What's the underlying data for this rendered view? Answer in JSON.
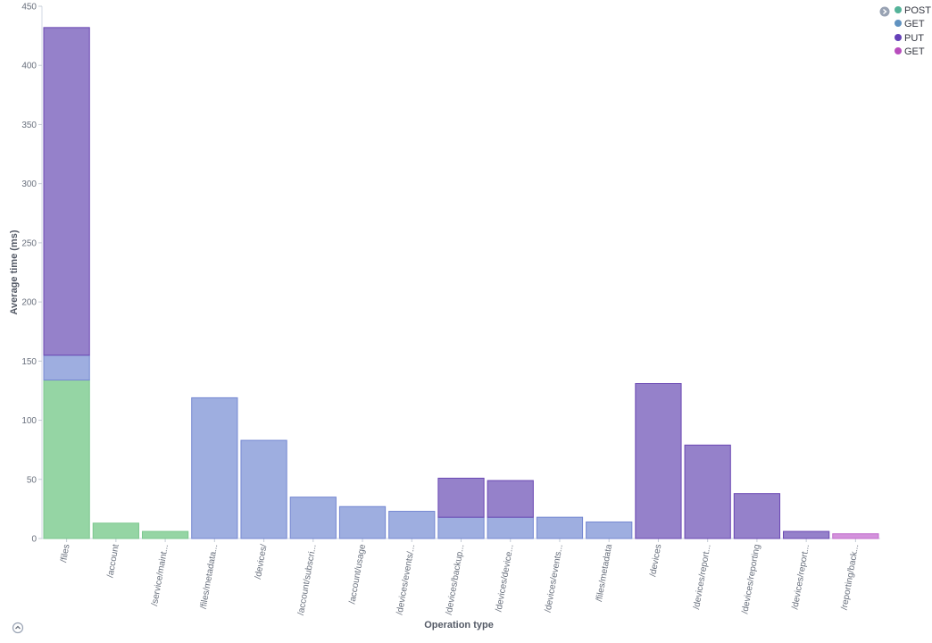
{
  "chart_data": {
    "type": "bar",
    "stacked": true,
    "xlabel": "Operation type",
    "ylabel": "Average time (ms)",
    "ylim": [
      0,
      450
    ],
    "yticks": [
      0,
      50,
      100,
      150,
      200,
      250,
      300,
      350,
      400,
      450
    ],
    "grid": false,
    "legend_position": "top-right",
    "categories": [
      "/files",
      "/account",
      "/service/maint...",
      "/files/metadata...",
      "/devices/",
      "/account/subscri...",
      "/account/usage",
      "/devices/events/...",
      "/devices/backup...",
      "/devices/device...",
      "/devices/events...",
      "/files/metadata",
      "/devices",
      "/devices/report...",
      "/devices/reporting",
      "/devices/report...",
      "/reporting/back..."
    ],
    "series": [
      {
        "name": "POST",
        "color": "#54b399",
        "values": [
          134,
          13,
          6,
          0,
          0,
          0,
          0,
          0,
          0,
          0,
          0,
          0,
          0,
          0,
          0,
          0,
          0
        ]
      },
      {
        "name": "GET",
        "color": "#6092c0",
        "values": [
          21,
          0,
          0,
          119,
          83,
          35,
          27,
          23,
          18,
          18,
          18,
          14,
          0,
          0,
          0,
          0,
          0
        ]
      },
      {
        "name": "PUT",
        "color": "#6540b8",
        "values": [
          277,
          0,
          0,
          0,
          0,
          0,
          0,
          0,
          33,
          31,
          0,
          0,
          131,
          79,
          38,
          6,
          0
        ]
      },
      {
        "name": "GET",
        "color": "#b84dbd",
        "values": [
          0,
          0,
          0,
          0,
          0,
          0,
          0,
          0,
          0,
          0,
          0,
          0,
          0,
          0,
          0,
          0,
          4
        ]
      }
    ],
    "fill_colors": [
      "#95d5a4",
      "#9eaee0",
      "#9581ca",
      "#d392dc"
    ],
    "stroke_colors": [
      "#7cc78f",
      "#7487d1",
      "#6a47b3",
      "#c06ccb"
    ]
  },
  "legend": {
    "toggle_icon": "chevron-right-circle-icon",
    "items": [
      {
        "label": "POST",
        "color": "#54b399"
      },
      {
        "label": "GET",
        "color": "#6092c0"
      },
      {
        "label": "PUT",
        "color": "#6540b8"
      },
      {
        "label": "GET",
        "color": "#b84dbd"
      }
    ]
  },
  "footer": {
    "collapse_icon": "chevron-up-circle-icon"
  }
}
